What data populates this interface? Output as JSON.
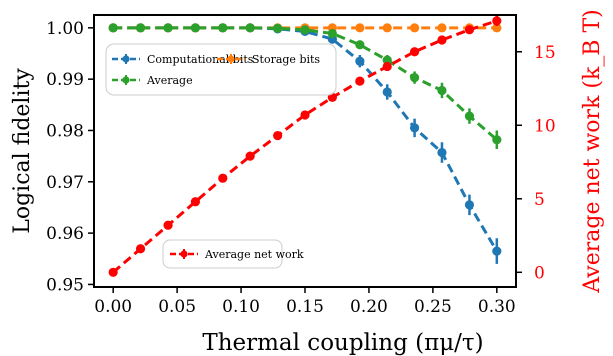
{
  "chart_data": {
    "type": "line",
    "xlabel": "Thermal coupling (πμ/τ)",
    "ylabel_left": "Logical fidelity",
    "ylabel_right": "Average net work (k_B T)",
    "x": [
      0.0,
      0.0214,
      0.0429,
      0.0643,
      0.0857,
      0.1071,
      0.1286,
      0.15,
      0.1714,
      0.1929,
      0.2143,
      0.2357,
      0.2571,
      0.2786,
      0.3
    ],
    "xlim": [
      -0.015,
      0.315
    ],
    "ylim_left": [
      0.9495,
      1.0025
    ],
    "ylim_right": [
      -1,
      17.5
    ],
    "x_ticks": [
      0.0,
      0.05,
      0.1,
      0.15,
      0.2,
      0.25,
      0.3
    ],
    "x_tick_labels": [
      "0.00",
      "0.05",
      "0.10",
      "0.15",
      "0.20",
      "0.25",
      "0.30"
    ],
    "y_left_ticks": [
      0.95,
      0.96,
      0.97,
      0.98,
      0.99,
      1.0
    ],
    "y_left_tick_labels": [
      "0.95",
      "0.96",
      "0.97",
      "0.98",
      "0.99",
      "1.00"
    ],
    "y_right_ticks": [
      0,
      5,
      10,
      15
    ],
    "y_right_tick_labels": [
      "0",
      "5",
      "10",
      "15"
    ],
    "series": [
      {
        "name": "Computational bits",
        "axis": "left",
        "color": "#1f77b4",
        "values": [
          1.0,
          1.0,
          1.0,
          1.0,
          1.0,
          1.0,
          0.9998,
          0.9993,
          0.9978,
          0.9935,
          0.9875,
          0.9805,
          0.9757,
          0.9655,
          0.9565
        ],
        "errors": [
          0,
          0,
          0,
          0,
          0,
          0,
          0.0003,
          0.0006,
          0.0008,
          0.0012,
          0.0015,
          0.0018,
          0.002,
          0.002,
          0.0025
        ]
      },
      {
        "name": "Storage bits",
        "axis": "left",
        "color": "#ff7f0e",
        "values": [
          1.0,
          1.0,
          1.0,
          1.0,
          1.0,
          1.0,
          1.0,
          1.0,
          1.0,
          1.0,
          1.0,
          1.0,
          1.0,
          1.0,
          1.0
        ],
        "errors": [
          0,
          0,
          0,
          0,
          0,
          0,
          0,
          0,
          0,
          0,
          0,
          0,
          0,
          0,
          0
        ]
      },
      {
        "name": "Average",
        "axis": "left",
        "color": "#2ca02c",
        "values": [
          1.0,
          1.0,
          1.0,
          1.0,
          1.0,
          1.0,
          0.9999,
          0.9996,
          0.9989,
          0.9967,
          0.9937,
          0.9903,
          0.9878,
          0.9828,
          0.9782
        ],
        "errors": [
          0,
          0,
          0,
          0,
          0,
          0,
          0.0002,
          0.0004,
          0.0006,
          0.0008,
          0.001,
          0.0012,
          0.0015,
          0.0015,
          0.0018
        ]
      },
      {
        "name": "Average net work",
        "axis": "right",
        "color": "#ff0000",
        "values": [
          0.0,
          1.6,
          3.2,
          4.8,
          6.4,
          7.9,
          9.3,
          10.7,
          11.9,
          13.0,
          14.0,
          15.0,
          15.8,
          16.5,
          17.1
        ],
        "errors": [
          0,
          0,
          0,
          0,
          0,
          0,
          0,
          0,
          0,
          0,
          0.15,
          0.2,
          0.25,
          0.3,
          0.35
        ]
      }
    ],
    "legends": [
      {
        "placement": "upper-left",
        "entries": [
          "Computational bits",
          "Storage bits",
          "Average"
        ]
      },
      {
        "placement": "lower-left",
        "entries": [
          "Average net work"
        ]
      }
    ],
    "grid": false
  }
}
